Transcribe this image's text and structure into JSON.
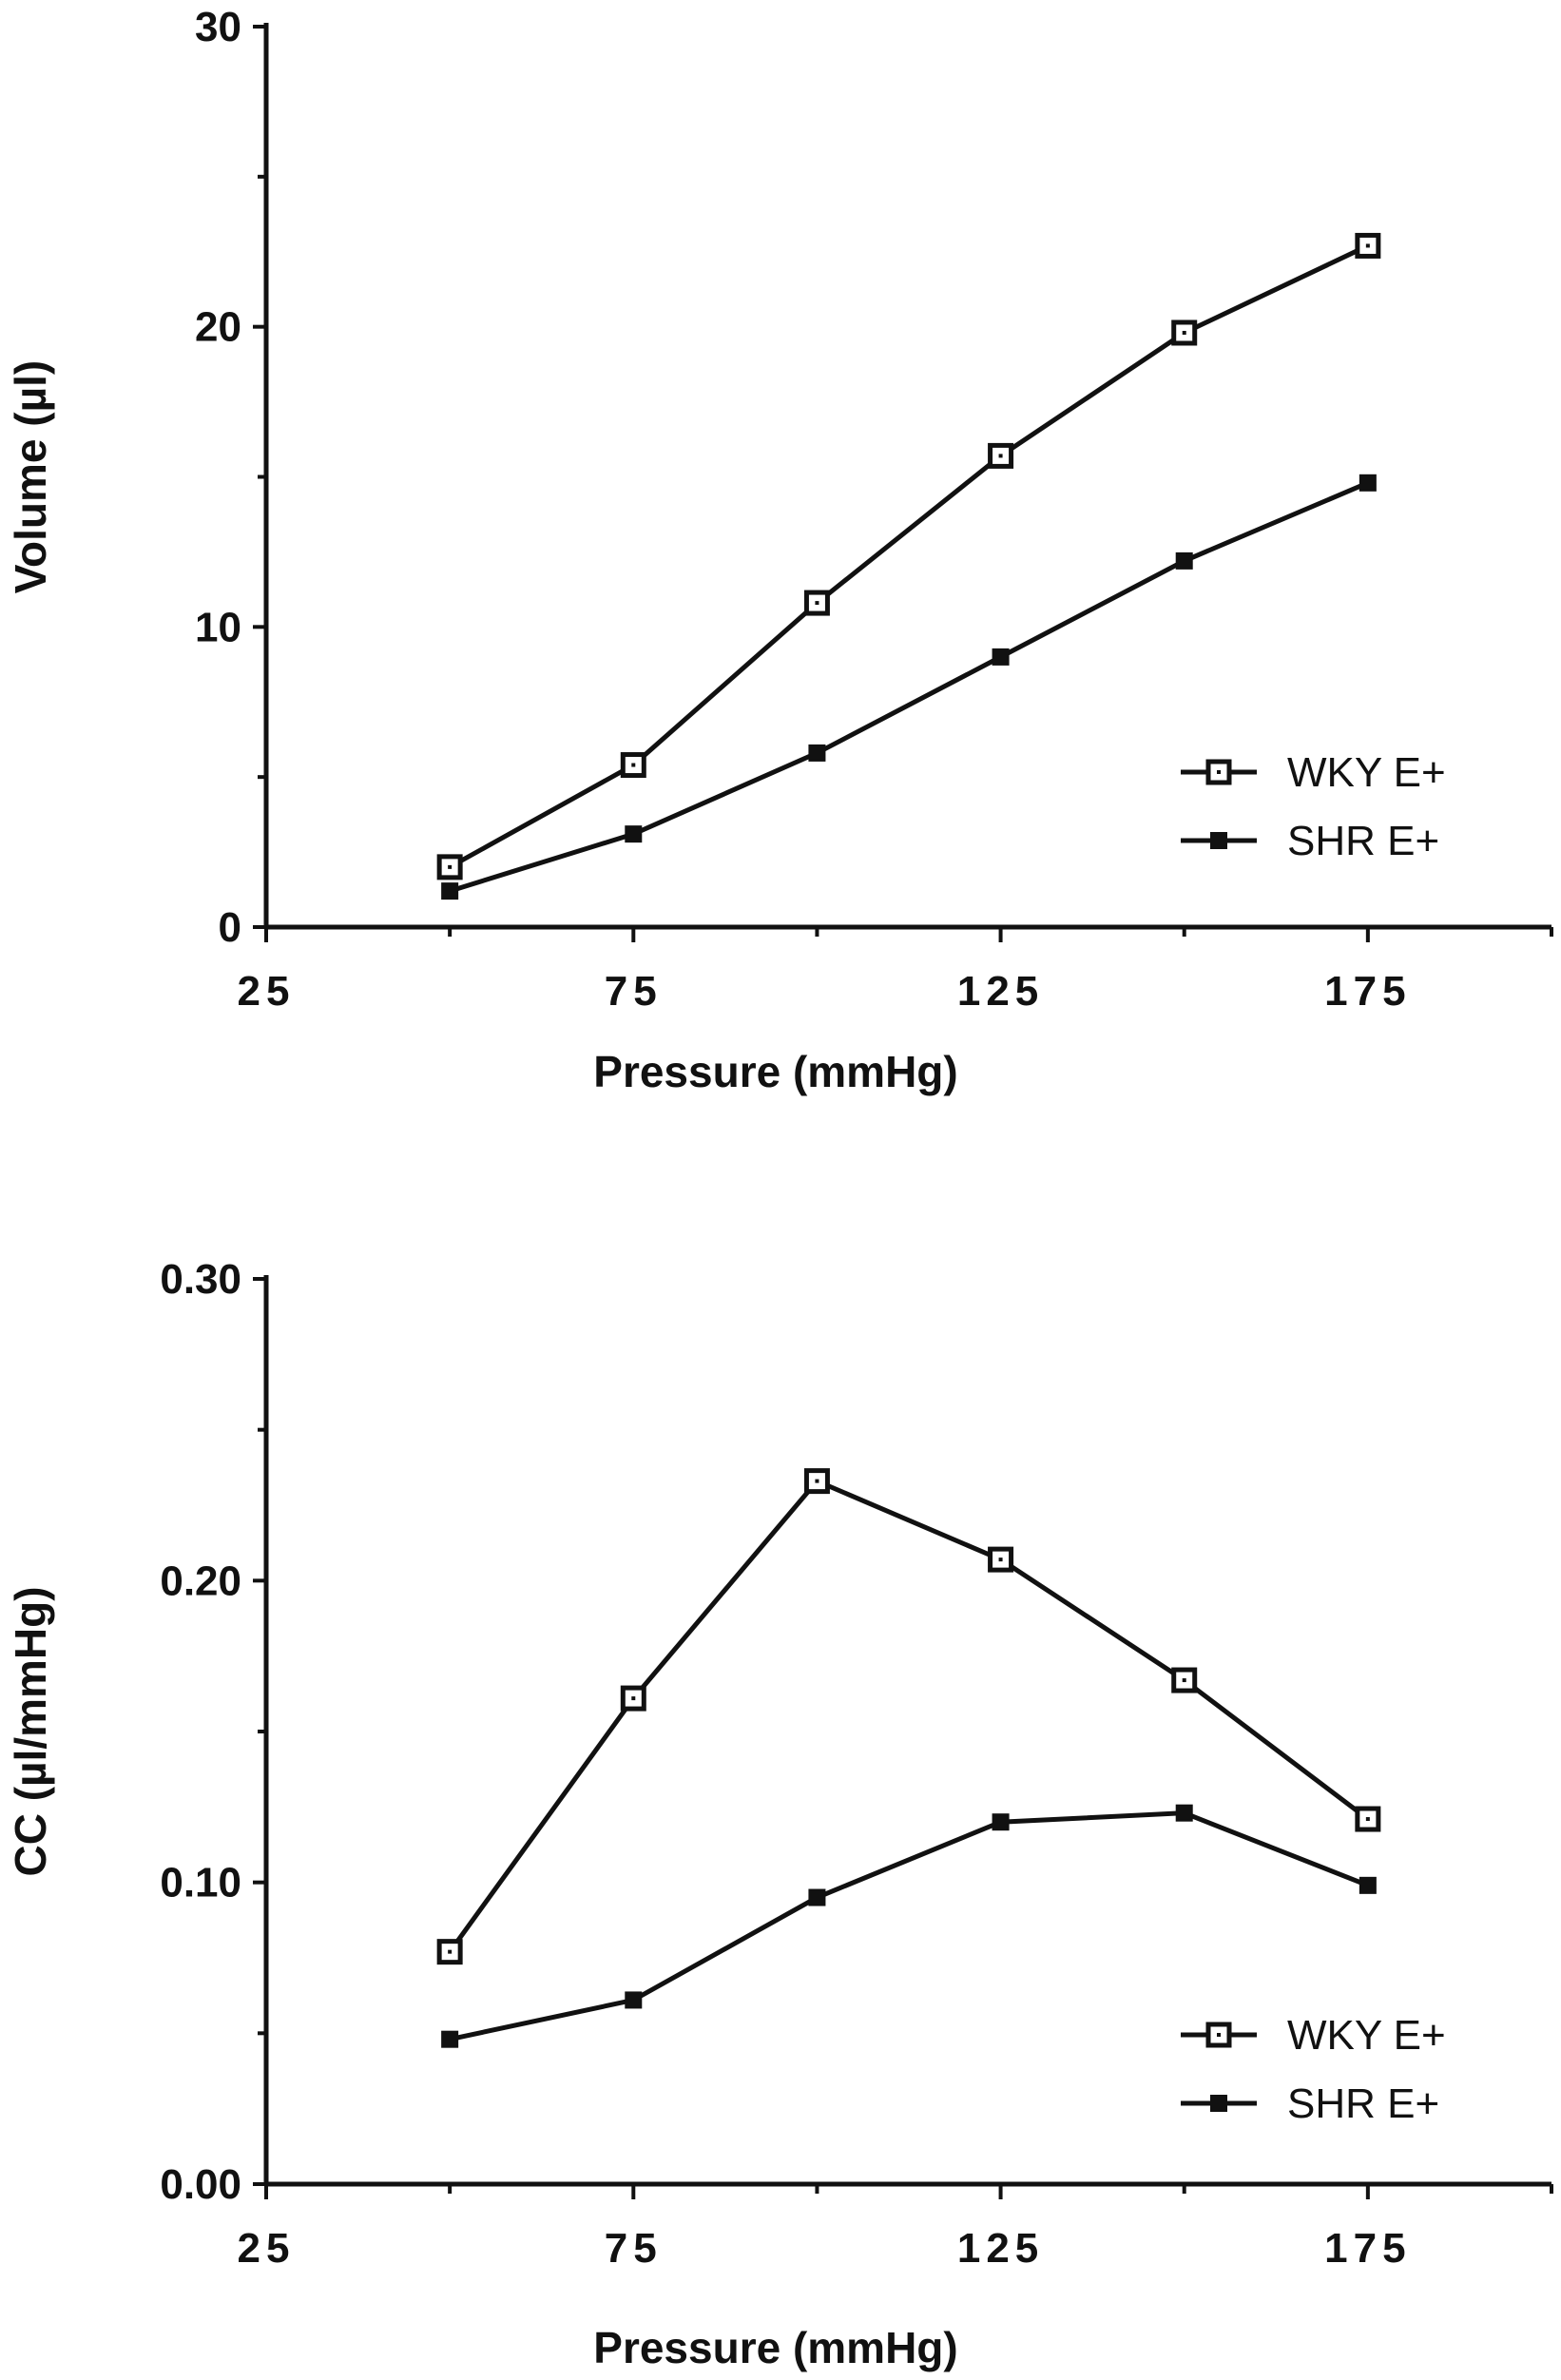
{
  "chart_data": [
    {
      "type": "line",
      "title": "",
      "xlabel": "Pressure (mmHg)",
      "ylabel": "Volume (µl)",
      "xlim": [
        25,
        200
      ],
      "ylim": [
        0,
        30
      ],
      "xticks": [
        25,
        75,
        125,
        175
      ],
      "yticks": [
        0,
        10,
        20,
        30
      ],
      "xtick_labels": [
        "25",
        "75",
        "125",
        "175"
      ],
      "ytick_labels": [
        "0",
        "10",
        "20",
        "30"
      ],
      "grid": false,
      "legend_position": "lower-right",
      "x": [
        50,
        75,
        100,
        125,
        150,
        175
      ],
      "series": [
        {
          "name": "WKY E+",
          "marker": "open-square",
          "values": [
            2.0,
            5.4,
            10.8,
            15.7,
            19.8,
            22.7
          ]
        },
        {
          "name": "SHR E+",
          "marker": "filled-square",
          "values": [
            1.2,
            3.1,
            5.8,
            9.0,
            12.2,
            14.8
          ]
        }
      ]
    },
    {
      "type": "line",
      "title": "",
      "xlabel": "Pressure (mmHg)",
      "ylabel": "CC (µl/mmHg)",
      "xlim": [
        25,
        200
      ],
      "ylim": [
        0,
        0.3
      ],
      "xticks": [
        25,
        75,
        125,
        175
      ],
      "yticks": [
        0,
        0.1,
        0.2,
        0.3
      ],
      "xtick_labels": [
        "25",
        "75",
        "125",
        "175"
      ],
      "ytick_labels": [
        "0.00",
        "0.10",
        "0.20",
        "0.30"
      ],
      "grid": false,
      "legend_position": "lower-right",
      "x": [
        50,
        75,
        100,
        125,
        150,
        175
      ],
      "series": [
        {
          "name": "WKY E+",
          "marker": "open-square",
          "values": [
            0.077,
            0.161,
            0.233,
            0.207,
            0.167,
            0.121
          ]
        },
        {
          "name": "SHR E+",
          "marker": "filled-square",
          "values": [
            0.048,
            0.061,
            0.095,
            0.12,
            0.123,
            0.099
          ]
        }
      ]
    }
  ]
}
